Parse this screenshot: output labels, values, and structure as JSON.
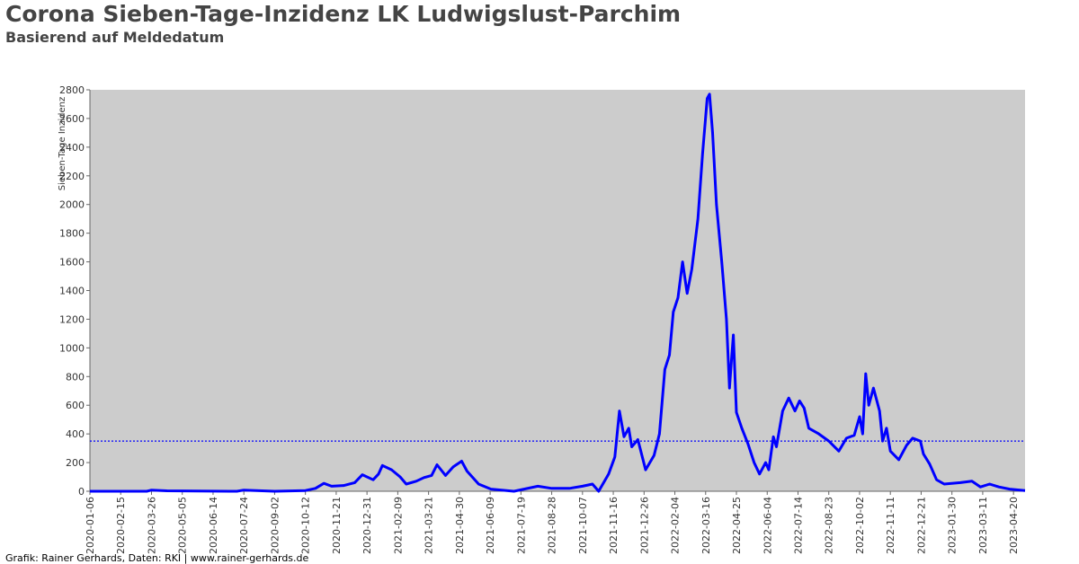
{
  "chart_data": {
    "type": "line",
    "title": "Corona Sieben-Tage-Inzidenz LK Ludwigslust-Parchim",
    "subtitle": "Basierend auf Meldedatum",
    "y_label": "Sieben-Tage Inzidenz",
    "footer": "Grafik: Rainer Gerhards, Daten: RKI | www.rainer-gerhards.de",
    "threshold": 350,
    "threshold_color": "#0000ff",
    "background": "#cccccc",
    "xlim": [
      "2020-01-06",
      "2023-05-05"
    ],
    "xticks": [
      "2020-01-06",
      "2020-02-15",
      "2020-03-26",
      "2020-05-05",
      "2020-06-14",
      "2020-07-24",
      "2020-09-02",
      "2020-10-12",
      "2020-11-21",
      "2020-12-31",
      "2021-02-09",
      "2021-03-21",
      "2021-04-30",
      "2021-06-09",
      "2021-07-19",
      "2021-08-28",
      "2021-10-07",
      "2021-11-16",
      "2021-12-26",
      "2022-02-04",
      "2022-03-16",
      "2022-04-25",
      "2022-06-04",
      "2022-07-14",
      "2022-08-23",
      "2022-10-02",
      "2022-11-11",
      "2022-12-21",
      "2023-01-30",
      "2023-03-11",
      "2023-04-20"
    ],
    "ylim": [
      0,
      2800
    ],
    "yticks": [
      0,
      200,
      400,
      600,
      800,
      1000,
      1200,
      1400,
      1600,
      1800,
      2000,
      2200,
      2400,
      2600,
      2800
    ],
    "x": [
      "2020-01-06",
      "2020-03-20",
      "2020-03-26",
      "2020-04-15",
      "2020-07-15",
      "2020-07-24",
      "2020-09-02",
      "2020-10-12",
      "2020-10-25",
      "2020-11-05",
      "2020-11-15",
      "2020-12-01",
      "2020-12-15",
      "2020-12-25",
      "2021-01-08",
      "2021-01-15",
      "2021-01-20",
      "2021-02-01",
      "2021-02-12",
      "2021-02-20",
      "2021-03-05",
      "2021-03-15",
      "2021-03-25",
      "2021-04-01",
      "2021-04-12",
      "2021-04-22",
      "2021-05-03",
      "2021-05-10",
      "2021-05-25",
      "2021-06-10",
      "2021-07-10",
      "2021-08-10",
      "2021-08-28",
      "2021-09-20",
      "2021-10-07",
      "2021-10-20",
      "2021-10-28",
      "2021-11-10",
      "2021-11-18",
      "2021-11-24",
      "2021-11-30",
      "2021-12-06",
      "2021-12-10",
      "2021-12-18",
      "2021-12-28",
      "2022-01-08",
      "2022-01-15",
      "2022-01-22",
      "2022-01-28",
      "2022-02-02",
      "2022-02-08",
      "2022-02-14",
      "2022-02-20",
      "2022-02-26",
      "2022-03-06",
      "2022-03-12",
      "2022-03-18",
      "2022-03-21",
      "2022-03-25",
      "2022-03-30",
      "2022-04-06",
      "2022-04-12",
      "2022-04-16",
      "2022-04-19",
      "2022-04-21",
      "2022-04-25",
      "2022-05-02",
      "2022-05-10",
      "2022-05-18",
      "2022-05-25",
      "2022-06-02",
      "2022-06-06",
      "2022-06-12",
      "2022-06-16",
      "2022-06-24",
      "2022-07-02",
      "2022-07-10",
      "2022-07-16",
      "2022-07-22",
      "2022-07-28",
      "2022-08-10",
      "2022-08-23",
      "2022-09-05",
      "2022-09-15",
      "2022-09-25",
      "2022-10-02",
      "2022-10-06",
      "2022-10-10",
      "2022-10-14",
      "2022-10-20",
      "2022-10-28",
      "2022-11-01",
      "2022-11-06",
      "2022-11-11",
      "2022-11-22",
      "2022-12-02",
      "2022-12-10",
      "2022-12-20",
      "2022-12-24",
      "2023-01-01",
      "2023-01-10",
      "2023-01-20",
      "2023-02-10",
      "2023-02-25",
      "2023-03-08",
      "2023-03-20",
      "2023-04-01",
      "2023-04-15",
      "2023-05-05"
    ],
    "series": [
      {
        "name": "Sieben-Tage Inzidenz",
        "color": "#0000ff",
        "values": [
          0,
          0,
          8,
          3,
          0,
          8,
          0,
          5,
          20,
          55,
          35,
          40,
          60,
          115,
          80,
          120,
          180,
          150,
          100,
          50,
          70,
          95,
          110,
          185,
          110,
          170,
          210,
          140,
          50,
          15,
          0,
          35,
          20,
          20,
          35,
          50,
          0,
          120,
          240,
          560,
          380,
          440,
          310,
          360,
          150,
          250,
          400,
          850,
          950,
          1250,
          1350,
          1600,
          1380,
          1550,
          1900,
          2350,
          2740,
          2770,
          2500,
          2000,
          1600,
          1200,
          720,
          950,
          1090,
          550,
          440,
          330,
          200,
          120,
          200,
          150,
          380,
          310,
          560,
          650,
          560,
          630,
          580,
          440,
          400,
          350,
          280,
          370,
          390,
          520,
          400,
          820,
          600,
          720,
          560,
          350,
          440,
          280,
          220,
          320,
          370,
          350,
          260,
          190,
          80,
          50,
          60,
          70,
          30,
          50,
          30,
          15,
          5
        ]
      }
    ]
  }
}
